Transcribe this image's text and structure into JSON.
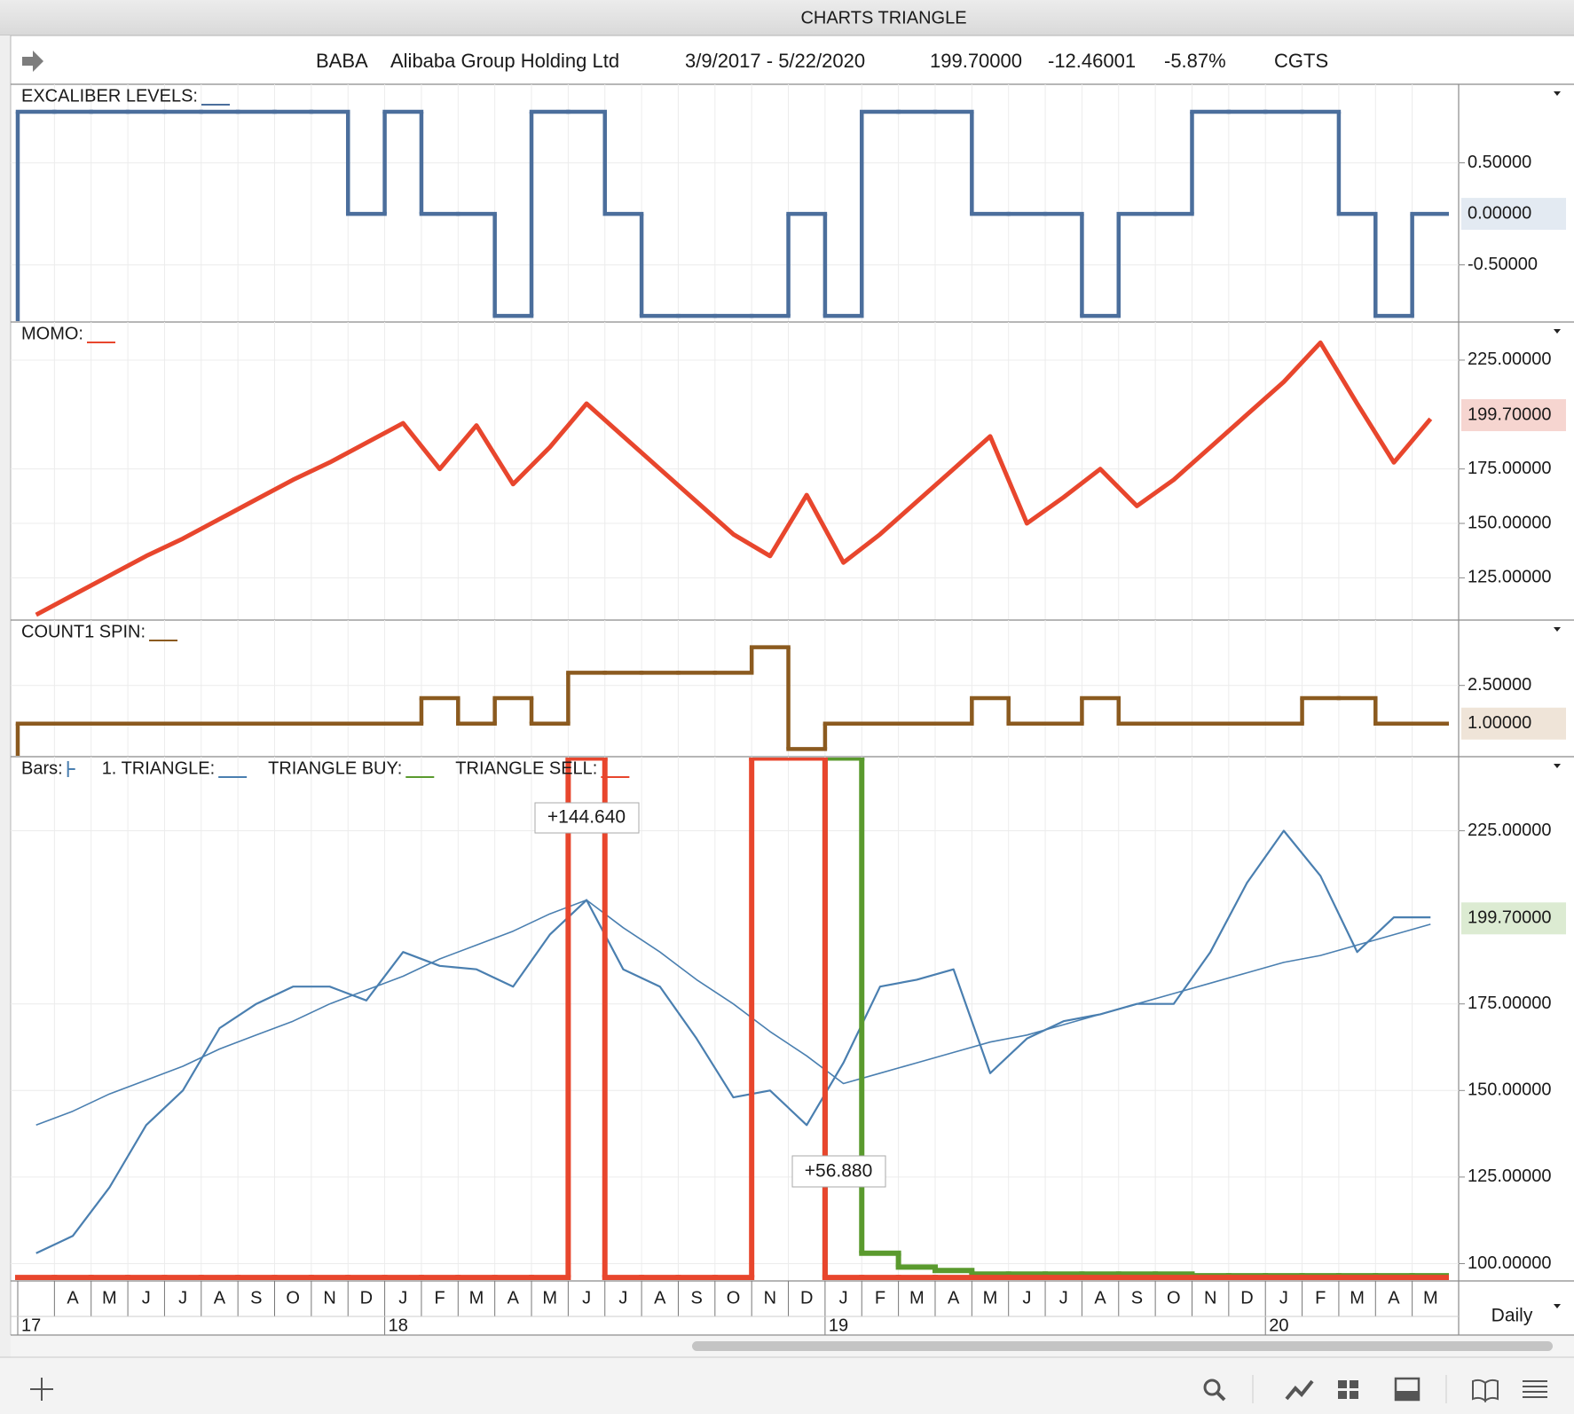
{
  "window": {
    "title": "CHARTS TRIANGLE"
  },
  "header": {
    "symbol": "BABA",
    "name": "Alibaba Group Holding Ltd",
    "range": "3/9/2017 - 5/22/2020",
    "last": "199.70000",
    "change": "-12.46001",
    "change_pct": "-5.87%",
    "study": "CGTS"
  },
  "chart_data": [
    {
      "type": "line",
      "series": [
        {
          "name": "EXCALIBER LEVELS:",
          "color": "#4b6e9c",
          "style": "step",
          "values": [
            1,
            1,
            1,
            1,
            1,
            1,
            1,
            1,
            1,
            0,
            1,
            0,
            0,
            -1,
            1,
            1,
            0,
            -1,
            -1,
            -1,
            -1,
            0,
            -1,
            1,
            1,
            1,
            0,
            0,
            0,
            -1,
            0,
            0,
            1,
            1,
            1,
            1,
            0,
            -1,
            0
          ]
        }
      ],
      "ylim": [
        -1.06,
        1.27
      ],
      "yticks": [
        {
          "value": 0.5,
          "label": "0.50000"
        },
        {
          "value": -0.5,
          "label": "-0.50000"
        }
      ],
      "last_value": {
        "value": 0,
        "label": "0.00000",
        "color": "#e3eaf2"
      }
    },
    {
      "type": "line",
      "series": [
        {
          "name": "MOMO:",
          "color": "#e8462d",
          "style": "thick",
          "values": [
            108,
            117,
            126,
            135,
            143,
            152,
            161,
            170,
            178,
            187,
            196,
            175,
            195,
            168,
            185,
            205,
            190,
            175,
            160,
            145,
            135,
            163,
            132,
            145,
            160,
            175,
            190,
            150,
            162,
            175,
            158,
            170,
            185,
            200,
            215,
            233,
            205,
            178,
            198
          ]
        }
      ],
      "ylim": [
        105.6,
        242.5
      ],
      "yticks": [
        {
          "value": 125,
          "label": "125.00000"
        },
        {
          "value": 150,
          "label": "150.00000"
        },
        {
          "value": 175,
          "label": "175.00000"
        },
        {
          "value": 225,
          "label": "225.00000"
        }
      ],
      "last_value": {
        "value": 199.7,
        "label": "199.70000",
        "color": "#f6d5d0"
      }
    },
    {
      "type": "line",
      "series": [
        {
          "name": "COUNT1 SPIN:",
          "color": "#8b5a1f",
          "style": "step",
          "values": [
            1,
            1,
            1,
            1,
            1,
            1,
            1,
            1,
            1,
            1,
            1,
            2,
            1,
            2,
            1,
            3,
            3,
            3,
            3,
            3,
            4,
            0,
            1,
            1,
            1,
            1,
            2,
            1,
            1,
            2,
            1,
            1,
            1,
            1,
            1,
            2,
            2,
            1,
            1
          ]
        }
      ],
      "ylim": [
        -0.3,
        5.07
      ],
      "yticks": [
        {
          "value": 2.5,
          "label": "2.50000"
        }
      ],
      "last_value": {
        "value": 1,
        "label": "1.00000",
        "color": "#efe4d8"
      }
    },
    {
      "type": "line",
      "categories": [
        null,
        "A",
        "M",
        "J",
        "J",
        "A",
        "S",
        "O",
        "N",
        "D",
        "J",
        "F",
        "M",
        "A",
        "M",
        "J",
        "J",
        "A",
        "S",
        "O",
        "N",
        "D",
        "J",
        "F",
        "M",
        "A",
        "M",
        "J",
        "J",
        "A",
        "S",
        "O",
        "N",
        "D",
        "J",
        "F",
        "M",
        "A",
        "M"
      ],
      "year_categories": [
        "17",
        null,
        null,
        null,
        null,
        null,
        null,
        null,
        null,
        null,
        "18",
        null,
        null,
        null,
        null,
        null,
        null,
        null,
        null,
        null,
        null,
        null,
        "19",
        null,
        null,
        null,
        null,
        null,
        null,
        null,
        null,
        null,
        null,
        null,
        "20",
        null,
        null,
        null,
        null
      ],
      "period": "Daily",
      "series": [
        {
          "name": "Bars:",
          "color": "#4a7fb0",
          "style": "line",
          "values": [
            103,
            108,
            122,
            140,
            150,
            168,
            175,
            180,
            180,
            176,
            190,
            186,
            185,
            180,
            195,
            205,
            185,
            180,
            165,
            148,
            150,
            140,
            158,
            180,
            182,
            185,
            155,
            165,
            170,
            172,
            175,
            175,
            190,
            210,
            225,
            212,
            190,
            200,
            200
          ]
        },
        {
          "name": "1. TRIANGLE:",
          "color": "#4a7fb0",
          "style": "trend",
          "values": [
            140,
            144,
            149,
            153,
            157,
            162,
            166,
            170,
            175,
            179,
            183,
            188,
            192,
            196,
            201,
            205,
            197,
            190,
            182,
            175,
            167,
            160,
            152,
            155,
            158,
            161,
            164,
            166,
            169,
            172,
            175,
            178,
            181,
            184,
            187,
            189,
            192,
            195,
            198
          ]
        },
        {
          "name": "TRIANGLE BUY:",
          "color": "#5a9a2e",
          "style": "step",
          "values": [
            null,
            null,
            null,
            null,
            null,
            null,
            null,
            null,
            null,
            null,
            null,
            null,
            null,
            null,
            null,
            null,
            null,
            null,
            null,
            null,
            null,
            null,
            246,
            103,
            99,
            98,
            97,
            97,
            97,
            97,
            97,
            97,
            96.5,
            96.5,
            96.5,
            96.5,
            96.5,
            96.5,
            96.5
          ]
        },
        {
          "name": "TRIANGLE SELL:",
          "color": "#e8462d",
          "style": "step",
          "values": [
            96,
            96,
            96,
            96,
            96,
            96,
            96,
            96,
            96,
            96,
            96,
            96,
            96,
            96,
            96,
            246,
            96,
            96,
            96,
            96,
            246,
            246,
            96,
            96,
            96,
            96,
            96,
            96,
            96,
            96,
            96,
            96,
            96,
            96,
            96,
            96,
            96,
            96,
            96
          ]
        }
      ],
      "ylim": [
        95,
        246.4
      ],
      "yticks": [
        {
          "value": 100,
          "label": "100.00000"
        },
        {
          "value": 125,
          "label": "125.00000"
        },
        {
          "value": 150,
          "label": "150.00000"
        },
        {
          "value": 175,
          "label": "175.00000"
        },
        {
          "value": 225,
          "label": "225.00000"
        }
      ],
      "last_value": {
        "value": 199.7,
        "label": "199.70000",
        "color": "#dcebd2"
      },
      "annotations": [
        "+144.640",
        "+56.880"
      ]
    }
  ]
}
